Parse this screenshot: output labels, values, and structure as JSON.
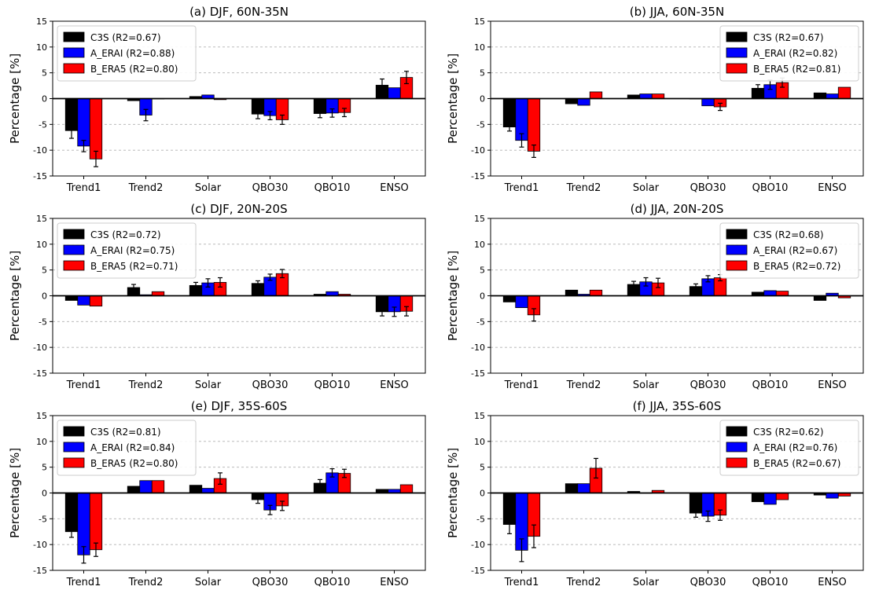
{
  "chart_data": [
    {
      "type": "bar",
      "title": "(a) DJF, 60N-35N",
      "ylabel": "Percentage [%]",
      "ylim": [
        -15,
        15
      ],
      "yticks": [
        15,
        10,
        5,
        0,
        -5,
        -10,
        -15
      ],
      "grid": true,
      "legend": "top-left",
      "categories": [
        "Trend1",
        "Trend2",
        "Solar",
        "QBO30",
        "QBO10",
        "ENSO"
      ],
      "series": [
        {
          "name": "C3S (R2=0.67)",
          "color": "#000000",
          "values": [
            -6.2,
            -0.4,
            0.4,
            -3.0,
            -2.9,
            2.6
          ],
          "errors": [
            1.5,
            0,
            0,
            0.9,
            0.8,
            1.2
          ]
        },
        {
          "name": "A_ERAI (R2=0.88)",
          "color": "#0000ff",
          "values": [
            -9.2,
            -3.2,
            0.7,
            -3.3,
            -2.8,
            2.1
          ],
          "errors": [
            1.1,
            1.1,
            0,
            0.8,
            0.8,
            0
          ]
        },
        {
          "name": "B_ERA5 (R2=0.80)",
          "color": "#ff0000",
          "values": [
            -11.7,
            0.0,
            -0.2,
            -4.1,
            -2.7,
            4.1
          ],
          "errors": [
            1.5,
            0,
            0,
            0.9,
            0.8,
            1.2
          ]
        }
      ]
    },
    {
      "type": "bar",
      "title": "(b) JJA, 60N-35N",
      "ylabel": "Percentage [%]",
      "ylim": [
        -15,
        15
      ],
      "yticks": [
        15,
        10,
        5,
        0,
        -5,
        -10,
        -15
      ],
      "grid": true,
      "legend": "top-right",
      "categories": [
        "Trend1",
        "Trend2",
        "Solar",
        "QBO30",
        "QBO10",
        "ENSO"
      ],
      "series": [
        {
          "name": "C3S (R2=0.67)",
          "color": "#000000",
          "values": [
            -5.5,
            -1.0,
            0.7,
            0.0,
            2.0,
            1.1
          ],
          "errors": [
            0.8,
            0,
            0,
            0,
            0.7,
            0
          ]
        },
        {
          "name": "A_ERAI (R2=0.82)",
          "color": "#0000ff",
          "values": [
            -8.1,
            -1.3,
            0.9,
            -1.4,
            2.7,
            0.9
          ],
          "errors": [
            1.3,
            0,
            0,
            0,
            0.9,
            0
          ]
        },
        {
          "name": "B_ERA5 (R2=0.81)",
          "color": "#ff0000",
          "values": [
            -10.2,
            1.3,
            0.9,
            -1.6,
            3.1,
            2.2
          ],
          "errors": [
            1.2,
            0,
            0,
            0.7,
            0.9,
            0
          ]
        }
      ]
    },
    {
      "type": "bar",
      "title": "(c) DJF, 20N-20S",
      "ylabel": "Percentage [%]",
      "ylim": [
        -15,
        15
      ],
      "yticks": [
        15,
        10,
        5,
        0,
        -5,
        -10,
        -15
      ],
      "grid": true,
      "legend": "top-left",
      "categories": [
        "Trend1",
        "Trend2",
        "Solar",
        "QBO30",
        "QBO10",
        "ENSO"
      ],
      "series": [
        {
          "name": "C3S (R2=0.72)",
          "color": "#000000",
          "values": [
            -0.9,
            1.6,
            2.0,
            2.4,
            0.3,
            -3.1
          ],
          "errors": [
            0,
            0.6,
            0.6,
            0.5,
            0,
            0.8
          ]
        },
        {
          "name": "A_ERAI (R2=0.75)",
          "color": "#0000ff",
          "values": [
            -1.8,
            0.2,
            2.5,
            3.6,
            0.8,
            -3.1
          ],
          "errors": [
            0,
            0,
            0.8,
            0.6,
            0,
            0.9
          ]
        },
        {
          "name": "B_ERA5 (R2=0.71)",
          "color": "#ff0000",
          "values": [
            -2.0,
            0.8,
            2.6,
            4.3,
            0.3,
            -3.0
          ],
          "errors": [
            0,
            0,
            0.9,
            0.8,
            0,
            0.9
          ]
        }
      ]
    },
    {
      "type": "bar",
      "title": "(d) JJA, 20N-20S",
      "ylabel": "Percentage [%]",
      "ylim": [
        -15,
        15
      ],
      "yticks": [
        15,
        10,
        5,
        0,
        -5,
        -10,
        -15
      ],
      "grid": true,
      "legend": "top-right",
      "categories": [
        "Trend1",
        "Trend2",
        "Solar",
        "QBO30",
        "QBO10",
        "ENSO"
      ],
      "series": [
        {
          "name": "C3S (R2=0.68)",
          "color": "#000000",
          "values": [
            -1.2,
            1.1,
            2.2,
            1.8,
            0.7,
            -0.9
          ],
          "errors": [
            0,
            0,
            0.6,
            0.5,
            0,
            0
          ]
        },
        {
          "name": "A_ERAI (R2=0.67)",
          "color": "#0000ff",
          "values": [
            -2.3,
            0.3,
            2.7,
            3.3,
            1.0,
            0.5
          ],
          "errors": [
            0,
            0,
            0.8,
            0.6,
            0,
            0
          ]
        },
        {
          "name": "B_ERA5 (R2=0.72)",
          "color": "#ff0000",
          "values": [
            -3.7,
            1.1,
            2.5,
            3.5,
            0.9,
            -0.4
          ],
          "errors": [
            1.2,
            0,
            0.9,
            0.6,
            0,
            0
          ]
        }
      ]
    },
    {
      "type": "bar",
      "title": "(e) DJF, 35S-60S",
      "ylabel": "Percentage [%]",
      "ylim": [
        -15,
        15
      ],
      "yticks": [
        15,
        10,
        5,
        0,
        -5,
        -10,
        -15
      ],
      "grid": true,
      "legend": "top-left",
      "categories": [
        "Trend1",
        "Trend2",
        "Solar",
        "QBO30",
        "QBO10",
        "ENSO"
      ],
      "series": [
        {
          "name": "C3S (R2=0.81)",
          "color": "#000000",
          "values": [
            -7.5,
            1.3,
            1.5,
            -1.3,
            1.9,
            0.7
          ],
          "errors": [
            1.1,
            0,
            0,
            0.7,
            0.7,
            0
          ]
        },
        {
          "name": "A_ERAI (R2=0.84)",
          "color": "#0000ff",
          "values": [
            -12.0,
            2.4,
            0.9,
            -3.3,
            3.9,
            0.7
          ],
          "errors": [
            1.6,
            0,
            0,
            0.9,
            0.8,
            0
          ]
        },
        {
          "name": "B_ERA5 (R2=0.80)",
          "color": "#ff0000",
          "values": [
            -11.0,
            2.4,
            2.8,
            -2.5,
            3.8,
            1.6
          ],
          "errors": [
            1.3,
            0,
            1.1,
            0.9,
            0.8,
            0
          ]
        }
      ]
    },
    {
      "type": "bar",
      "title": "(f) JJA, 35S-60S",
      "ylabel": "Percentage [%]",
      "ylim": [
        -15,
        15
      ],
      "yticks": [
        15,
        10,
        5,
        0,
        -5,
        -10,
        -15
      ],
      "grid": true,
      "legend": "top-right",
      "categories": [
        "Trend1",
        "Trend2",
        "Solar",
        "QBO30",
        "QBO10",
        "ENSO"
      ],
      "series": [
        {
          "name": "C3S (R2=0.62)",
          "color": "#000000",
          "values": [
            -6.1,
            1.8,
            0.3,
            -3.9,
            -1.7,
            -0.4
          ],
          "errors": [
            1.8,
            0,
            0,
            0.8,
            0,
            0
          ]
        },
        {
          "name": "A_ERAI (R2=0.76)",
          "color": "#0000ff",
          "values": [
            -11.1,
            1.8,
            0.0,
            -4.5,
            -2.2,
            -1.0
          ],
          "errors": [
            2.2,
            0,
            0,
            1.0,
            0,
            0
          ]
        },
        {
          "name": "B_ERA5 (R2=0.67)",
          "color": "#ff0000",
          "values": [
            -8.4,
            4.8,
            0.5,
            -4.3,
            -1.3,
            -0.6
          ],
          "errors": [
            2.2,
            1.9,
            0,
            1.0,
            0,
            0
          ]
        }
      ]
    }
  ]
}
